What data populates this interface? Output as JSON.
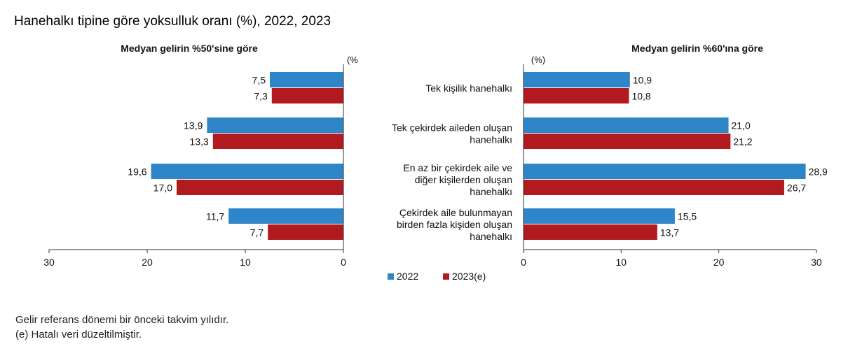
{
  "title": "Hanehalkı tipine göre yoksulluk oranı (%), 2022, 2023",
  "notes": [
    "Gelir referans dönemi bir önceki takvim yılıdır.",
    "(e) Hatalı veri düzeltilmiştir."
  ],
  "chart_data": [
    {
      "type": "bar",
      "orientation": "horizontal-reversed",
      "title": "Medyan gelirin %50'sine göre",
      "unit_label": "(%",
      "categories": [
        "Tek kişilik hanehalkı",
        "Tek çekirdek aileden oluşan hanehalkı",
        "En az bir çekirdek aile ve diğer kişilerden oluşan hanehalkı",
        "Çekirdek aile bulunmayan birden fazla kişiden oluşan hanehalkı"
      ],
      "series": [
        {
          "name": "2022",
          "values": [
            7.5,
            13.9,
            19.6,
            11.7
          ],
          "labels": [
            "7,5",
            "13,9",
            "19,6",
            "11,7"
          ]
        },
        {
          "name": "2023(e)",
          "values": [
            7.3,
            13.3,
            17.0,
            7.7
          ],
          "labels": [
            "7,3",
            "13,3",
            "17,0",
            "7,7"
          ]
        }
      ],
      "xlim": [
        0,
        30
      ],
      "ticks": [
        30,
        20,
        10,
        0
      ],
      "grid": false
    },
    {
      "type": "bar",
      "orientation": "horizontal",
      "title": "Medyan gelirin %60'ına göre",
      "unit_label": "(%)",
      "categories": [
        "Tek kişilik hanehalkı",
        "Tek çekirdek aileden oluşan hanehalkı",
        "En az bir çekirdek aile ve diğer kişilerden oluşan hanehalkı",
        "Çekirdek aile bulunmayan birden fazla kişiden oluşan hanehalkı"
      ],
      "series": [
        {
          "name": "2022",
          "values": [
            10.9,
            21.0,
            28.9,
            15.5
          ],
          "labels": [
            "10,9",
            "21,0",
            "28,9",
            "15,5"
          ]
        },
        {
          "name": "2023(e)",
          "values": [
            10.8,
            21.2,
            26.7,
            13.7
          ],
          "labels": [
            "10,8",
            "21,2",
            "26,7",
            "13,7"
          ]
        }
      ],
      "xlim": [
        0,
        30
      ],
      "ticks": [
        0,
        10,
        20,
        30
      ],
      "grid": false
    }
  ],
  "category_labels": [
    [
      "Tek kişilik hanehalkı"
    ],
    [
      "Tek çekirdek aileden oluşan",
      "hanehalkı"
    ],
    [
      "En az bir çekirdek aile ve",
      "diğer kişilerden oluşan",
      "hanehalkı"
    ],
    [
      "Çekirdek aile bulunmayan",
      "birden fazla kişiden oluşan",
      "hanehalkı"
    ]
  ],
  "legend": {
    "placement": "bottom-center",
    "items": [
      {
        "name": "2022",
        "color": "#2E86C8"
      },
      {
        "name": "2023(e)",
        "color": "#B11A1F"
      }
    ]
  },
  "colors": {
    "series_2022": "#2E86C8",
    "series_2023": "#B11A1F",
    "axis": "#333333"
  }
}
